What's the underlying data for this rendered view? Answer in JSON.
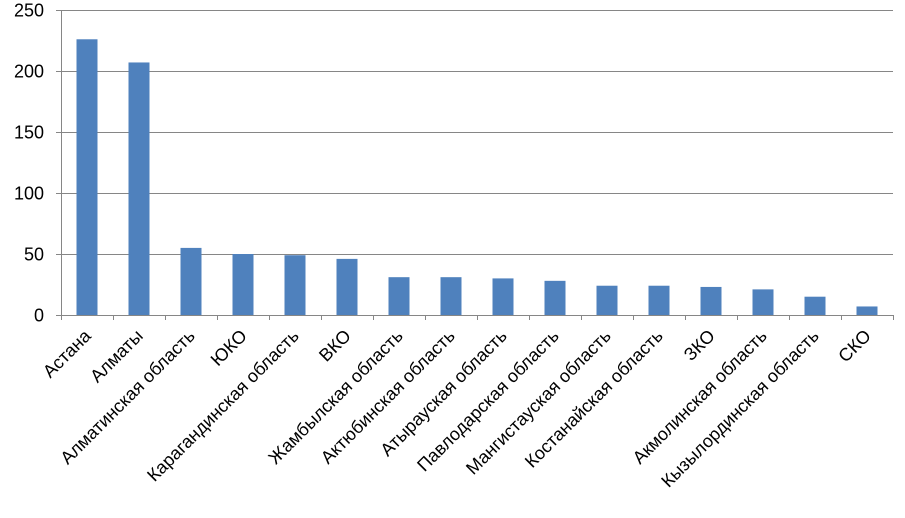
{
  "chart_data": {
    "type": "bar",
    "title": "",
    "xlabel": "",
    "ylabel": "",
    "ylim": [
      0,
      250
    ],
    "yticks": [
      0,
      50,
      100,
      150,
      200,
      250
    ],
    "grid": true,
    "legend": "none",
    "bar_color": "#4F81BD",
    "grid_color": "#868686",
    "categories": [
      "Астана",
      "Алматы",
      "Алматинская область",
      "ЮКО",
      "Карагандинская область",
      "ВКО",
      "Жамбылская область",
      "Актюбинская область",
      "Атырауская область",
      "Павлодарская область",
      "Мангистауская область",
      "Костанайская область",
      "ЗКО",
      "Акмолинская область",
      "Кызылординская область",
      "СКО"
    ],
    "values": [
      226,
      207,
      55,
      50,
      49,
      46,
      31,
      31,
      30,
      28,
      24,
      24,
      23,
      21,
      15,
      7
    ]
  }
}
